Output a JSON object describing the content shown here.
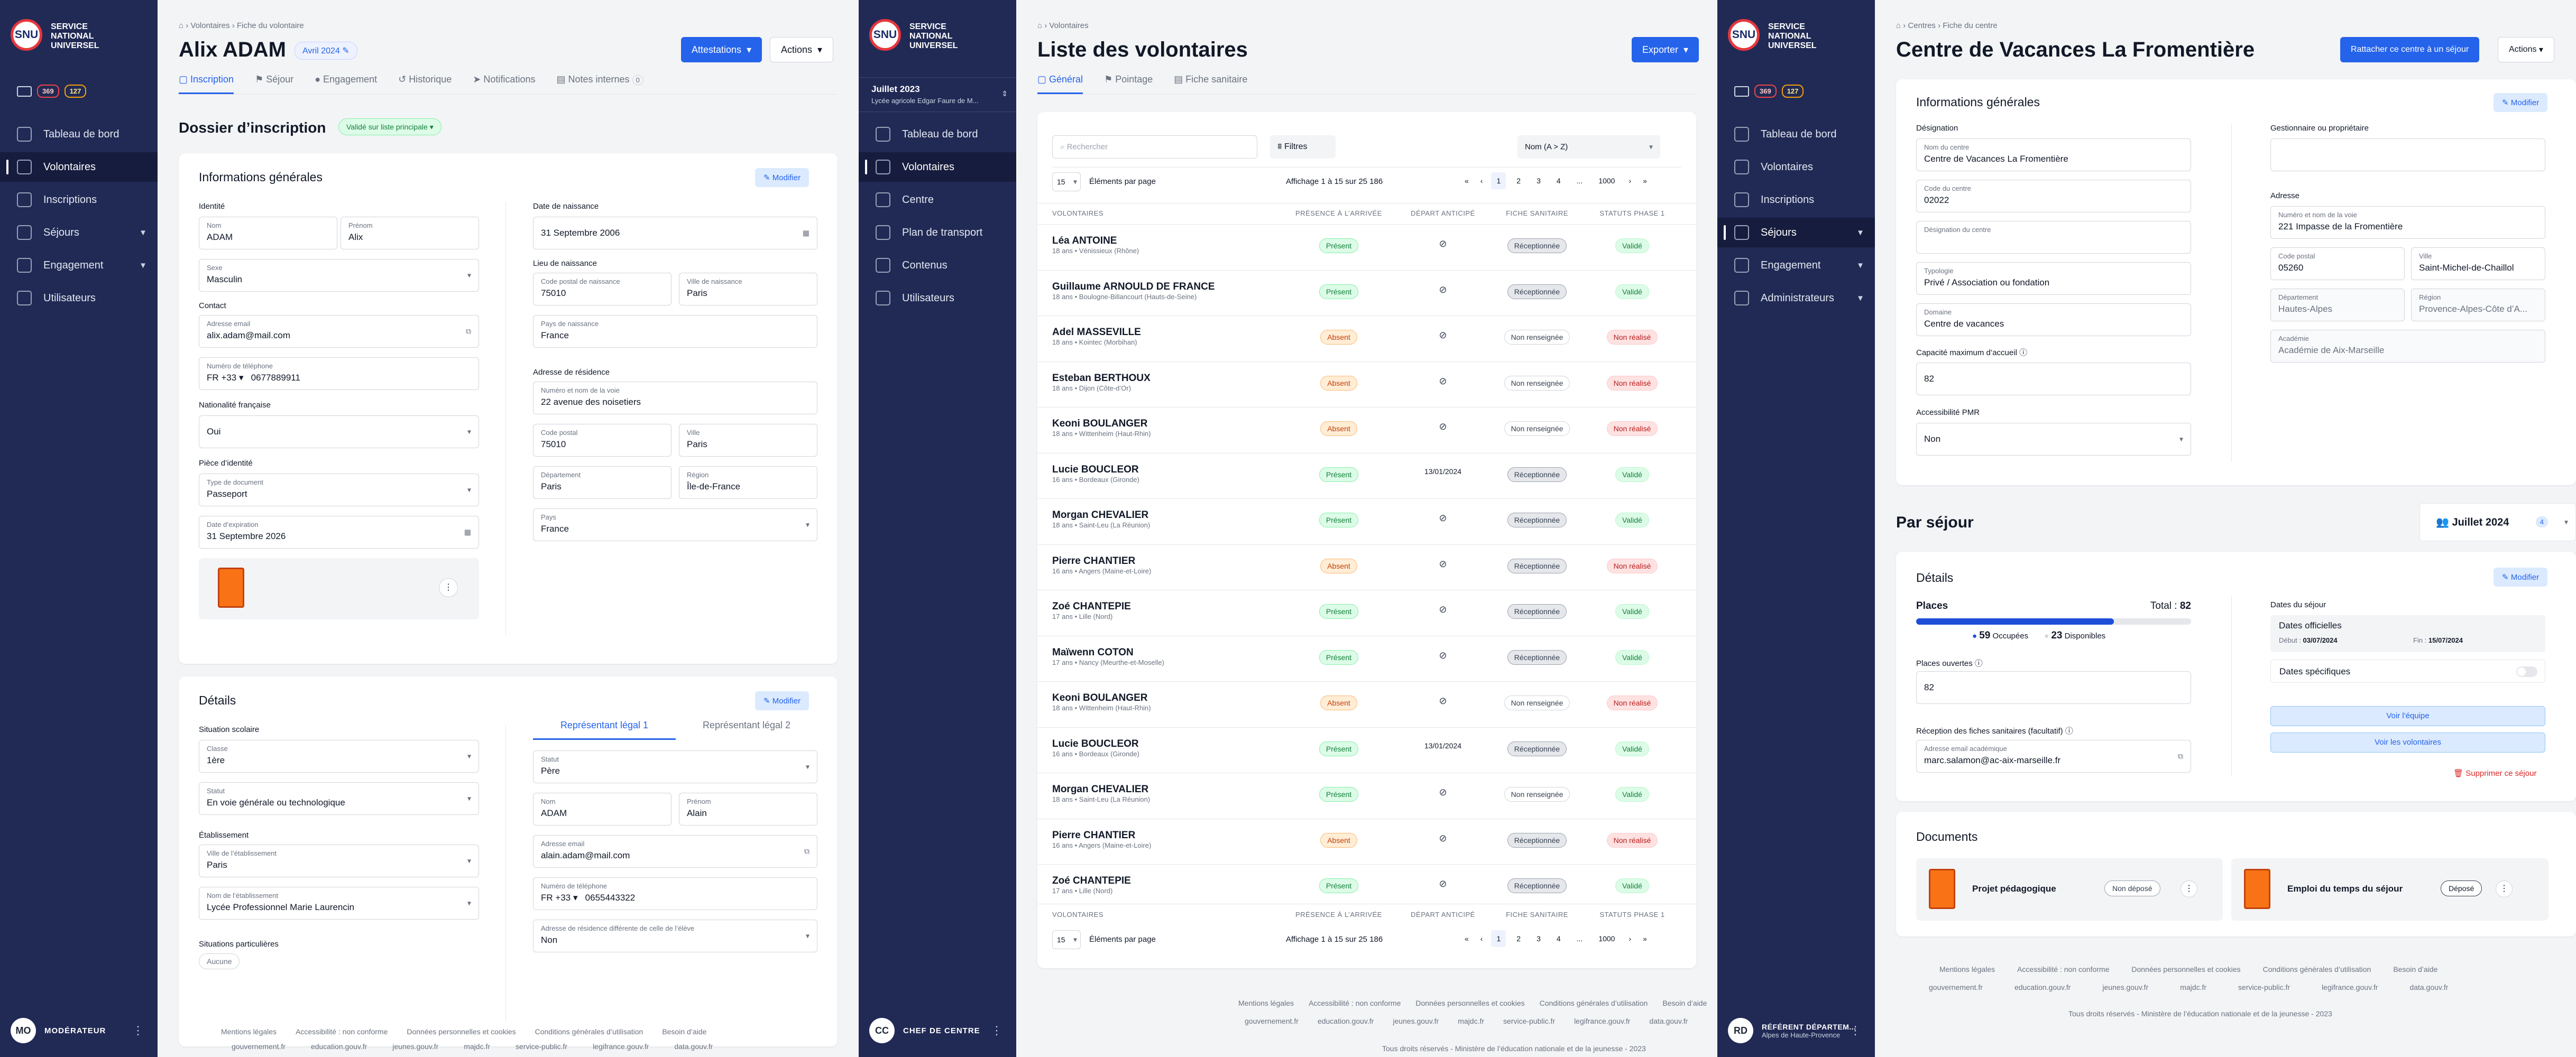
{
  "brand": {
    "line1": "SERVICE",
    "line2": "NATIONAL",
    "line3": "UNIVERSEL",
    "logo": "SNU"
  },
  "s1": {
    "badges": [
      "369",
      "127"
    ],
    "nav": [
      {
        "label": "Tableau de bord"
      },
      {
        "label": "Volontaires"
      },
      {
        "label": "Inscriptions"
      },
      {
        "label": "Séjours"
      },
      {
        "label": "Engagement"
      },
      {
        "label": "Utilisateurs"
      }
    ],
    "user": {
      "initials": "MO",
      "role": "MODÉRATEUR"
    },
    "breadcrumb": [
      "Volontaires",
      "Fiche du volontaire"
    ],
    "title": "Alix ADAM",
    "cohort": "Avril 2024",
    "btn_att": "Attestations",
    "btn_actions": "Actions",
    "tabs": [
      "Inscription",
      "Séjour",
      "Engagement",
      "Historique",
      "Notifications",
      "Notes internes"
    ],
    "notes_count": "0",
    "dossier": "Dossier d’inscription",
    "status": "Validé sur liste principale",
    "info": {
      "title": "Informations générales",
      "modifier": "Modifier",
      "identite": "Identité",
      "nom_l": "Nom",
      "nom": "ADAM",
      "prenom_l": "Prénom",
      "prenom": "Alix",
      "sexe_l": "Sexe",
      "sexe": "Masculin",
      "contact": "Contact",
      "email_l": "Adresse email",
      "email": "alix.adam@mail.com",
      "tel_l": "Numéro de téléphone",
      "tel_cc": "FR +33",
      "tel": "0677889911",
      "nat": "Nationalité française",
      "nat_v": "Oui",
      "piece": "Pièce d’identité",
      "doc_l": "Type de document",
      "doc": "Passeport",
      "exp_l": "Date d’expiration",
      "exp": "31  Septembre  2026",
      "dob": "Date de naissance",
      "dob_v": "31  Septembre  2006",
      "lieu": "Lieu de naissance",
      "cp_n_l": "Code postal de naissance",
      "cp_n": "75010",
      "ville_n_l": "Ville de naissance",
      "ville_n": "Paris",
      "pays_n_l": "Pays de naissance",
      "pays_n": "France",
      "adr": "Adresse de résidence",
      "voie_l": "Numéro et nom de la voie",
      "voie": "22 avenue des noisetiers",
      "cp_l": "Code postal",
      "cp": "75010",
      "ville_l": "Ville",
      "ville": "Paris",
      "dep_l": "Département",
      "dep": "Paris",
      "reg_l": "Région",
      "reg": "Île-de-France",
      "pays_l": "Pays",
      "pays": "France"
    },
    "details": {
      "title": "Détails",
      "modifier": "Modifier",
      "situation": "Situation scolaire",
      "classe_l": "Classe",
      "classe": "1ère",
      "statut_l": "Statut",
      "statut": "En voie générale ou technologique",
      "etab": "Établissement",
      "ville_e_l": "Ville de l’établissement",
      "ville_e": "Paris",
      "nom_e_l": "Nom de l’établissement",
      "nom_e": "Lycée Professionnel Marie Laurencin",
      "part": "Situations particulières",
      "aucune": "Aucune",
      "rl1": "Représentant légal 1",
      "rl2": "Représentant légal 2",
      "rl_statut_l": "Statut",
      "rl_statut": "Père",
      "rl_nom_l": "Nom",
      "rl_nom": "ADAM",
      "rl_prenom_l": "Prénom",
      "rl_prenom": "Alain",
      "rl_email_l": "Adresse email",
      "rl_email": "alain.adam@mail.com",
      "rl_tel_l": "Numéro de téléphone",
      "rl_tel_cc": "FR +33",
      "rl_tel": "0655443322",
      "rl_adr_l": "Adresse de résidence différente de celle de l’élève",
      "rl_adr": "Non"
    }
  },
  "footer": {
    "links": [
      "Mentions légales",
      "Accessibilité : non conforme",
      "Données personnelles et cookies",
      "Conditions générales d’utilisation",
      "Besoin d’aide"
    ],
    "sites": [
      "gouvernement.fr",
      "education.gouv.fr",
      "jeunes.gouv.fr",
      "majdc.fr",
      "service-public.fr",
      "legifrance.gouv.fr",
      "data.gouv.fr"
    ],
    "rights": "Tous droits réservés - Ministère de l’éducation nationale et de la jeunesse - 2023"
  },
  "s2": {
    "cohort": "Juillet 2023",
    "cohort_sub": "Lycée agricole Edgar Faure de M...",
    "nav": [
      {
        "label": "Tableau de bord"
      },
      {
        "label": "Volontaires"
      },
      {
        "label": "Centre"
      },
      {
        "label": "Plan de transport"
      },
      {
        "label": "Contenus"
      },
      {
        "label": "Utilisateurs"
      }
    ],
    "user": {
      "initials": "CC",
      "role": "CHEF DE CENTRE"
    },
    "breadcrumb": [
      "Volontaires"
    ],
    "title": "Liste des volontaires",
    "export": "Exporter",
    "tabs": [
      "Général",
      "Pointage",
      "Fiche sanitaire"
    ],
    "search": "Rechercher",
    "filters": "Filtres",
    "sort": "Nom (A > Z)",
    "per_page": "15",
    "per_page_label": "Éléments par page",
    "showing": "Affichage 1 à 15 sur 25 186",
    "pages": [
      "1",
      "2",
      "3",
      "4",
      "...",
      "1000"
    ],
    "headers": [
      "VOLONTAIRES",
      "PRÉSENCE À L’ARRIVÉE",
      "DÉPART ANTICIPÉ",
      "FICHE SANITAIRE",
      "STATUTS PHASE 1"
    ],
    "rows": [
      {
        "name": "Léa ANTOINE",
        "sub": "18 ans • Vénissieux (Rhône)",
        "presence": "Présent",
        "depart": "",
        "fiche": "Réceptionnée",
        "statut": "Validé"
      },
      {
        "name": "Guillaume ARNOULD DE FRANCE",
        "sub": "18 ans • Boulogne-Billancourt (Hauts-de-Seine)",
        "presence": "Présent",
        "depart": "",
        "fiche": "Réceptionnée",
        "statut": "Validé"
      },
      {
        "name": "Adel MASSEVILLE",
        "sub": "18 ans • Kointec (Morbihan)",
        "presence": "Absent",
        "depart": "",
        "fiche": "Non renseignée",
        "statut": "Non réalisé"
      },
      {
        "name": "Esteban BERTHOUX",
        "sub": "18 ans • Dijon (Côte-d’Or)",
        "presence": "Absent",
        "depart": "",
        "fiche": "Non renseignée",
        "statut": "Non réalisé"
      },
      {
        "name": "Keoni BOULANGER",
        "sub": "18 ans • Wittenheim (Haut-Rhin)",
        "presence": "Absent",
        "depart": "",
        "fiche": "Non renseignée",
        "statut": "Non réalisé"
      },
      {
        "name": "Lucie BOUCLEOR",
        "sub": "16 ans • Bordeaux (Gironde)",
        "presence": "Présent",
        "depart": "13/01/2024",
        "fiche": "Réceptionnée",
        "statut": "Validé"
      },
      {
        "name": "Morgan CHEVALIER",
        "sub": "18 ans • Saint-Leu (La Réunion)",
        "presence": "Présent",
        "depart": "",
        "fiche": "Réceptionnée",
        "statut": "Validé"
      },
      {
        "name": "Pierre CHANTIER",
        "sub": "16 ans • Angers (Maine-et-Loire)",
        "presence": "Absent",
        "depart": "",
        "fiche": "Réceptionnée",
        "statut": "Non réalisé"
      },
      {
        "name": "Zoé CHANTEPIE",
        "sub": "17 ans • Lille (Nord)",
        "presence": "Présent",
        "depart": "",
        "fiche": "Réceptionnée",
        "statut": "Validé"
      },
      {
        "name": "Maïwenn COTON",
        "sub": "17 ans • Nancy (Meurthe-et-Moselle)",
        "presence": "Présent",
        "depart": "",
        "fiche": "Réceptionnée",
        "statut": "Validé"
      },
      {
        "name": "Keoni BOULANGER",
        "sub": "18 ans • Wittenheim (Haut-Rhin)",
        "presence": "Absent",
        "depart": "",
        "fiche": "Non renseignée",
        "statut": "Non réalisé"
      },
      {
        "name": "Lucie BOUCLEOR",
        "sub": "16 ans • Bordeaux (Gironde)",
        "presence": "Présent",
        "depart": "13/01/2024",
        "fiche": "Réceptionnée",
        "statut": "Validé"
      },
      {
        "name": "Morgan CHEVALIER",
        "sub": "18 ans • Saint-Leu (La Réunion)",
        "presence": "Présent",
        "depart": "",
        "fiche": "Non renseignée",
        "statut": "Validé"
      },
      {
        "name": "Pierre CHANTIER",
        "sub": "16 ans • Angers (Maine-et-Loire)",
        "presence": "Absent",
        "depart": "",
        "fiche": "Réceptionnée",
        "statut": "Non réalisé"
      },
      {
        "name": "Zoé CHANTEPIE",
        "sub": "17 ans • Lille (Nord)",
        "presence": "Présent",
        "depart": "",
        "fiche": "Réceptionnée",
        "statut": "Validé"
      }
    ]
  },
  "s3": {
    "badges": [
      "369",
      "127"
    ],
    "nav": [
      {
        "label": "Tableau de bord"
      },
      {
        "label": "Volontaires"
      },
      {
        "label": "Inscriptions"
      },
      {
        "label": "Séjours"
      },
      {
        "label": "Engagement"
      },
      {
        "label": "Administrateurs"
      }
    ],
    "user": {
      "initials": "RD",
      "role": "RÉFÉRENT DÉPARTEM...",
      "sub": "Alpes de Haute-Provence"
    },
    "breadcrumb": [
      "Centres",
      "Fiche du centre"
    ],
    "title": "Centre de Vacances La Fromentière",
    "btn_rattacher": "Rattacher ce centre à un séjour",
    "btn_actions": "Actions",
    "info": {
      "title": "Informations générales",
      "modifier": "Modifier",
      "designation": "Désignation",
      "nom_l": "Nom du centre",
      "nom": "Centre de Vacances La Fromentière",
      "code_l": "Code du centre",
      "code": "02022",
      "desig_l": "Désignation du centre",
      "typo_l": "Typologie",
      "typo": "Privé / Association ou fondation",
      "dom_l": "Domaine",
      "dom": "Centre de vacances",
      "cap": "Capacité maximum d’accueil",
      "cap_v": "82",
      "pmr": "Accessibilité PMR",
      "pmr_v": "Non",
      "gest": "Gestionnaire ou propriétaire",
      "adresse": "Adresse",
      "voie_l": "Numéro et nom de la voie",
      "voie": "221 Impasse de la Fromentière",
      "cp_l": "Code postal",
      "cp": "05260",
      "ville_l": "Ville",
      "ville": "Saint-Michel-de-Chaillol",
      "dep_l": "Département",
      "dep": "Hautes-Alpes",
      "reg_l": "Région",
      "reg": "Provence-Alpes-Côte d’A...",
      "acad_l": "Académie",
      "acad": "Académie de Aix-Marseille"
    },
    "sejour": {
      "title": "Par séjour",
      "cohort": "Juillet 2024",
      "count": "4"
    },
    "details": {
      "title": "Détails",
      "modifier": "Modifier",
      "places": "Places",
      "total": "Total :",
      "total_v": "82",
      "occ_v": "59",
      "occ": "Occupées",
      "dispo_v": "23",
      "dispo": "Disponibles",
      "ouv": "Places ouvertes",
      "ouv_v": "82",
      "fiches": "Réception des fiches sanitaires (facultatif)",
      "email_l": "Adresse email académique",
      "email": "marc.salamon@ac-aix-marseille.fr",
      "dates": "Dates du séjour",
      "off": "Dates officielles",
      "debut": "Début :",
      "debut_v": "03/07/2024",
      "fin": "Fin :",
      "fin_v": "15/07/2024",
      "spec": "Dates spécifiques",
      "equipe": "Voir l'équipe",
      "volontaires": "Voir les volontaires",
      "suppr": "Supprimer ce séjour"
    },
    "docs": {
      "title": "Documents",
      "d1": "Projet pédagogique",
      "d1s": "Non déposé",
      "d2": "Emploi du temps du séjour",
      "d2s": "Déposé"
    }
  },
  "colors": {
    "blue": "#2563eb",
    "sidebar": "#212a55",
    "green": "#16a34a",
    "orange": "#ea580c",
    "red": "#dc2626"
  },
  "chart_data": {
    "type": "bar",
    "title": "Places",
    "categories": [
      "Occupées",
      "Disponibles"
    ],
    "values": [
      59,
      23
    ],
    "total": 82
  }
}
